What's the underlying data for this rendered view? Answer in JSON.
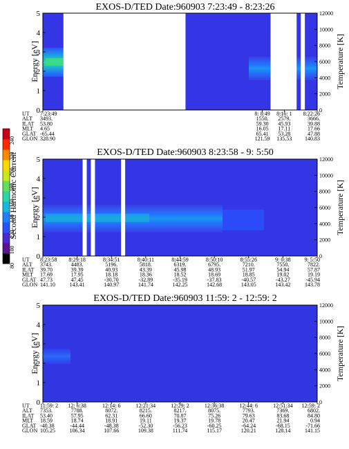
{
  "figure": {
    "cbar_label": "Second Harmonic Current",
    "cbar_ticks": [
      80,
      100,
      120,
      140,
      160,
      180,
      200,
      220,
      240
    ],
    "cbar_colors": [
      "#000000",
      "#5a1490",
      "#4a2ad0",
      "#2a52ff",
      "#1f80ff",
      "#1ab8d8",
      "#28d6a8",
      "#62e05a",
      "#c8e818",
      "#ffd800",
      "#ff8a00",
      "#ff2a00",
      "#c8001a"
    ]
  },
  "panels": [
    {
      "title": "EXOS-D/TED   Date:960903  7:23:49 - 8:23:26",
      "ylabel": "Energy [eV]",
      "y2label": "Temperature [K]",
      "ylim": [
        0,
        5
      ],
      "y2lim": [
        0,
        12000
      ],
      "yticks": [
        "0",
        "1",
        "2",
        "3",
        "4",
        "5"
      ],
      "y2ticks": [
        "0",
        "2000",
        "4000",
        "6000",
        "8000",
        "10000",
        "12000"
      ],
      "eph_labels": [
        "UT",
        "ALT",
        "ILAT",
        "MLT",
        "GLAT",
        "GLON"
      ],
      "eph_columns": [
        [
          "7:23:49",
          "3493.",
          "53.80",
          "4.65",
          "-65.44",
          "328.90"
        ],
        [
          "8: 8:49",
          "1550.",
          "59.30",
          "16.05",
          "65.41",
          "121.59"
        ],
        [
          "8:16: 1",
          "2579.",
          "45.93",
          "17.11",
          "53.28",
          "135.53"
        ],
        [
          "8:22:26",
          "3666.",
          "39.88",
          "17.66",
          "47.88",
          "140.83"
        ]
      ],
      "gaps": [
        [
          0.075,
          0.52
        ],
        [
          0.83,
          0.925
        ],
        [
          0.94,
          0.955
        ]
      ]
    },
    {
      "title": "EXOS-D/TED   Date:960903  8:23:58 - 9: 5:50",
      "ylabel": "Energy [eV]",
      "y2label": "Temperature [K]",
      "ylim": [
        0,
        5
      ],
      "y2lim": [
        0,
        12000
      ],
      "yticks": [
        "0",
        "1",
        "2",
        "3",
        "4",
        "5"
      ],
      "y2ticks": [
        "0",
        "2000",
        "4000",
        "6000",
        "8000",
        "10000",
        "12000"
      ],
      "eph_labels": [
        "UT",
        "ALT",
        "ILAT",
        "MLT",
        "GLAT",
        "GLON"
      ],
      "eph_columns": [
        [
          "8:23:58",
          "3743.",
          "39.70",
          "17.69",
          "47.73",
          "141.10"
        ],
        [
          "8:29:18",
          "4483.",
          "39.39",
          "17.95",
          "47.45",
          "143.41"
        ],
        [
          "8:34:51",
          "5196.",
          "40.93",
          "18.18",
          "-30.70",
          "140.97"
        ],
        [
          "8:40:11",
          "5818.",
          "43.39",
          "18.36",
          "-32.89",
          "141.74"
        ],
        [
          "8:44:59",
          "6319.",
          "45.98",
          "18.52",
          "-35.19",
          "142.25"
        ],
        [
          "8:50:10",
          "6795.",
          "48.93",
          "18.69",
          "-37.83",
          "142.68"
        ],
        [
          "8:55:26",
          "7210.",
          "51.97",
          "18.85",
          "-40.57",
          "143.05"
        ],
        [
          "9: 0:38",
          "7550.",
          "54.94",
          "19.02",
          "-43.27",
          "143.42"
        ],
        [
          "9: 5:50",
          "7822.",
          "57.87",
          "19.19",
          "-45.94",
          "143.78"
        ]
      ],
      "gaps": [
        [
          0.145,
          0.16
        ],
        [
          0.175,
          0.19
        ],
        [
          0.285,
          0.3
        ]
      ]
    },
    {
      "title": "EXOS-D/TED   Date:960903  11:59: 2 - 12:59: 2",
      "ylabel": "Energy [eV]",
      "y2label": "Temperature [K]",
      "ylim": [
        0,
        5
      ],
      "y2lim": [
        0,
        12000
      ],
      "yticks": [
        "0",
        "1",
        "2",
        "3",
        "4",
        "5"
      ],
      "y2ticks": [
        "0",
        "2000",
        "4000",
        "6000",
        "8000",
        "10000",
        "12000"
      ],
      "eph_labels": [
        "UT",
        "ALT",
        "ILAT",
        "MLT",
        "GLAT",
        "GLON"
      ],
      "eph_columns": [
        [
          "11:59: 2",
          "7353.",
          "53.40",
          "18.59",
          "-40.38",
          "105.25"
        ],
        [
          "12: 6:38",
          "7788.",
          "57.95",
          "18.74",
          "-44.44",
          "106.34"
        ],
        [
          "12:14: 6",
          "8072.",
          "62.31",
          "18.91",
          "-48.38",
          "107.66"
        ],
        [
          "12:21:34",
          "8215.",
          "66.60",
          "19.11",
          "-52.30",
          "109.38"
        ],
        [
          "12:29: 2",
          "8217.",
          "70.87",
          "19.37",
          "-56.23",
          "111.74"
        ],
        [
          "12:36:38",
          "8075.",
          "75.26",
          "19.78",
          "-60.25",
          "115.17"
        ],
        [
          "12:44: 6",
          "7793.",
          "79.63",
          "20.47",
          "-64.24",
          "120.21"
        ],
        [
          "12:51:34",
          "7369.",
          "83.68",
          "21.94",
          "-68.15",
          "128.14"
        ],
        [
          "12:59: 2",
          "6802.",
          "84.80",
          "0.94",
          "-71.66",
          "141.15"
        ]
      ],
      "gaps": []
    }
  ]
}
